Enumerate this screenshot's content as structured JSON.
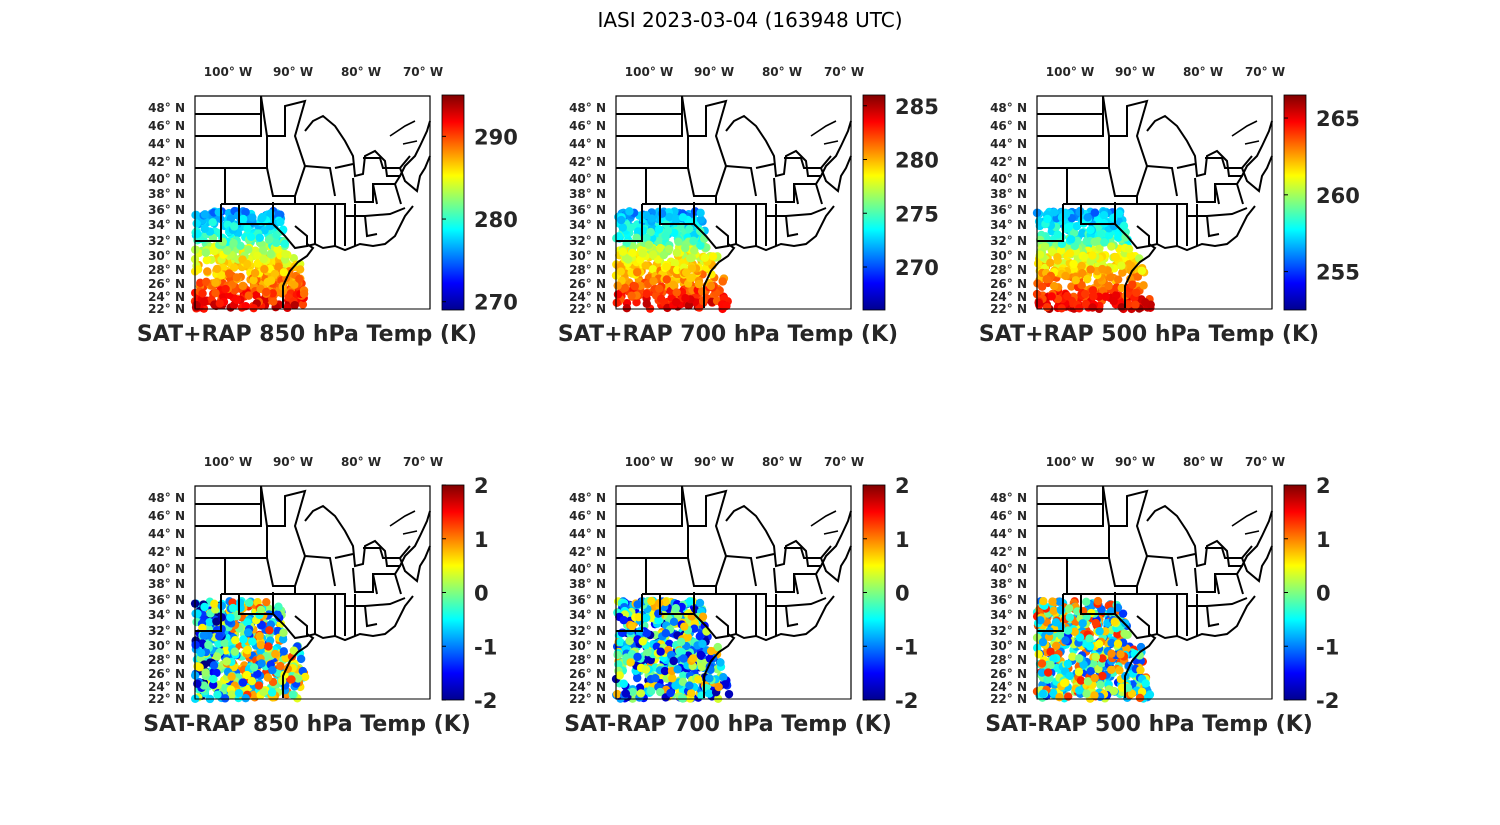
{
  "figure_title": "IASI 2023-03-04 (163948 UTC)",
  "lon_ticks": [
    "100",
    "90",
    "80",
    "70"
  ],
  "lon_suffix": " W",
  "lat_ticks": [
    "48",
    "46",
    "44",
    "42",
    "40",
    "38",
    "36",
    "34",
    "32",
    "30",
    "28",
    "26",
    "24",
    "22"
  ],
  "lat_suffix": " N",
  "degree_symbol": "°",
  "colormap": "jet",
  "panels": [
    {
      "title": "SAT+RAP 850 hPa Temp (K)",
      "colorbar": {
        "min": 269,
        "max": 295,
        "ticks": [
          "290",
          "280",
          "270"
        ]
      }
    },
    {
      "title": "SAT+RAP 700 hPa Temp (K)",
      "colorbar": {
        "min": 266,
        "max": 286,
        "ticks": [
          "285",
          "280",
          "275",
          "270"
        ]
      }
    },
    {
      "title": "SAT+RAP 500 hPa Temp (K)",
      "colorbar": {
        "min": 252.5,
        "max": 266.5,
        "ticks": [
          "265",
          "260",
          "255"
        ]
      }
    },
    {
      "title": "SAT-RAP 850 hPa Temp (K)",
      "colorbar": {
        "min": -2,
        "max": 2,
        "ticks": [
          "2",
          "1",
          "0",
          "-1",
          "-2"
        ]
      }
    },
    {
      "title": "SAT-RAP 700 hPa Temp (K)",
      "colorbar": {
        "min": -2,
        "max": 2,
        "ticks": [
          "2",
          "1",
          "0",
          "-1",
          "-2"
        ]
      }
    },
    {
      "title": "SAT-RAP 500 hPa Temp (K)",
      "colorbar": {
        "min": -2,
        "max": 2,
        "ticks": [
          "2",
          "1",
          "0",
          "-1",
          "-2"
        ]
      }
    }
  ]
}
